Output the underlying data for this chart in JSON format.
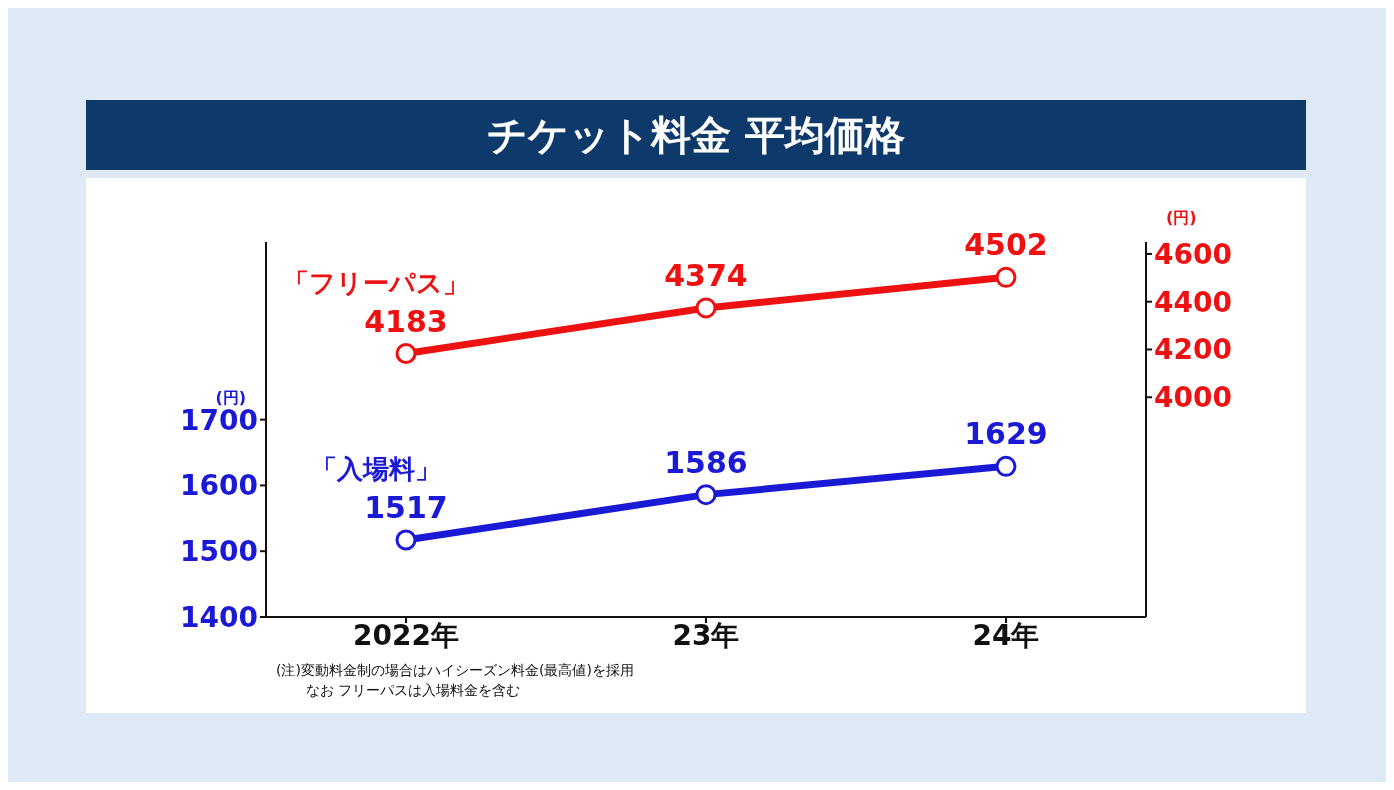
{
  "chart_data": {
    "type": "line",
    "title": "チケット料金 平均価格",
    "categories": [
      "2022年",
      "23年",
      "24年"
    ],
    "series": [
      {
        "name": "「フリーパス」",
        "color": "#ee1111",
        "values": [
          4183,
          4374,
          4502
        ],
        "axis": "y2"
      },
      {
        "name": "「入場料」",
        "color": "#1a1ad6",
        "values": [
          1517,
          1586,
          1629
        ]
      }
    ],
    "ylabel": "(円)",
    "y2label": "(円)",
    "ylim": [
      1400,
      1970
    ],
    "yticks": [
      1400,
      1500,
      1600,
      1700
    ],
    "y2lim": [
      3080,
      4650
    ],
    "y2ticks": [
      4000,
      4200,
      4400,
      4600
    ],
    "data_labels": true,
    "marker": "circle",
    "line_style": "solid",
    "grid": false,
    "legend": false,
    "annotations": [
      "(注)変動料金制の場合はハイシーズン料金(最高値)を採用",
      "なお フリーパスは入場料金を含む"
    ]
  }
}
